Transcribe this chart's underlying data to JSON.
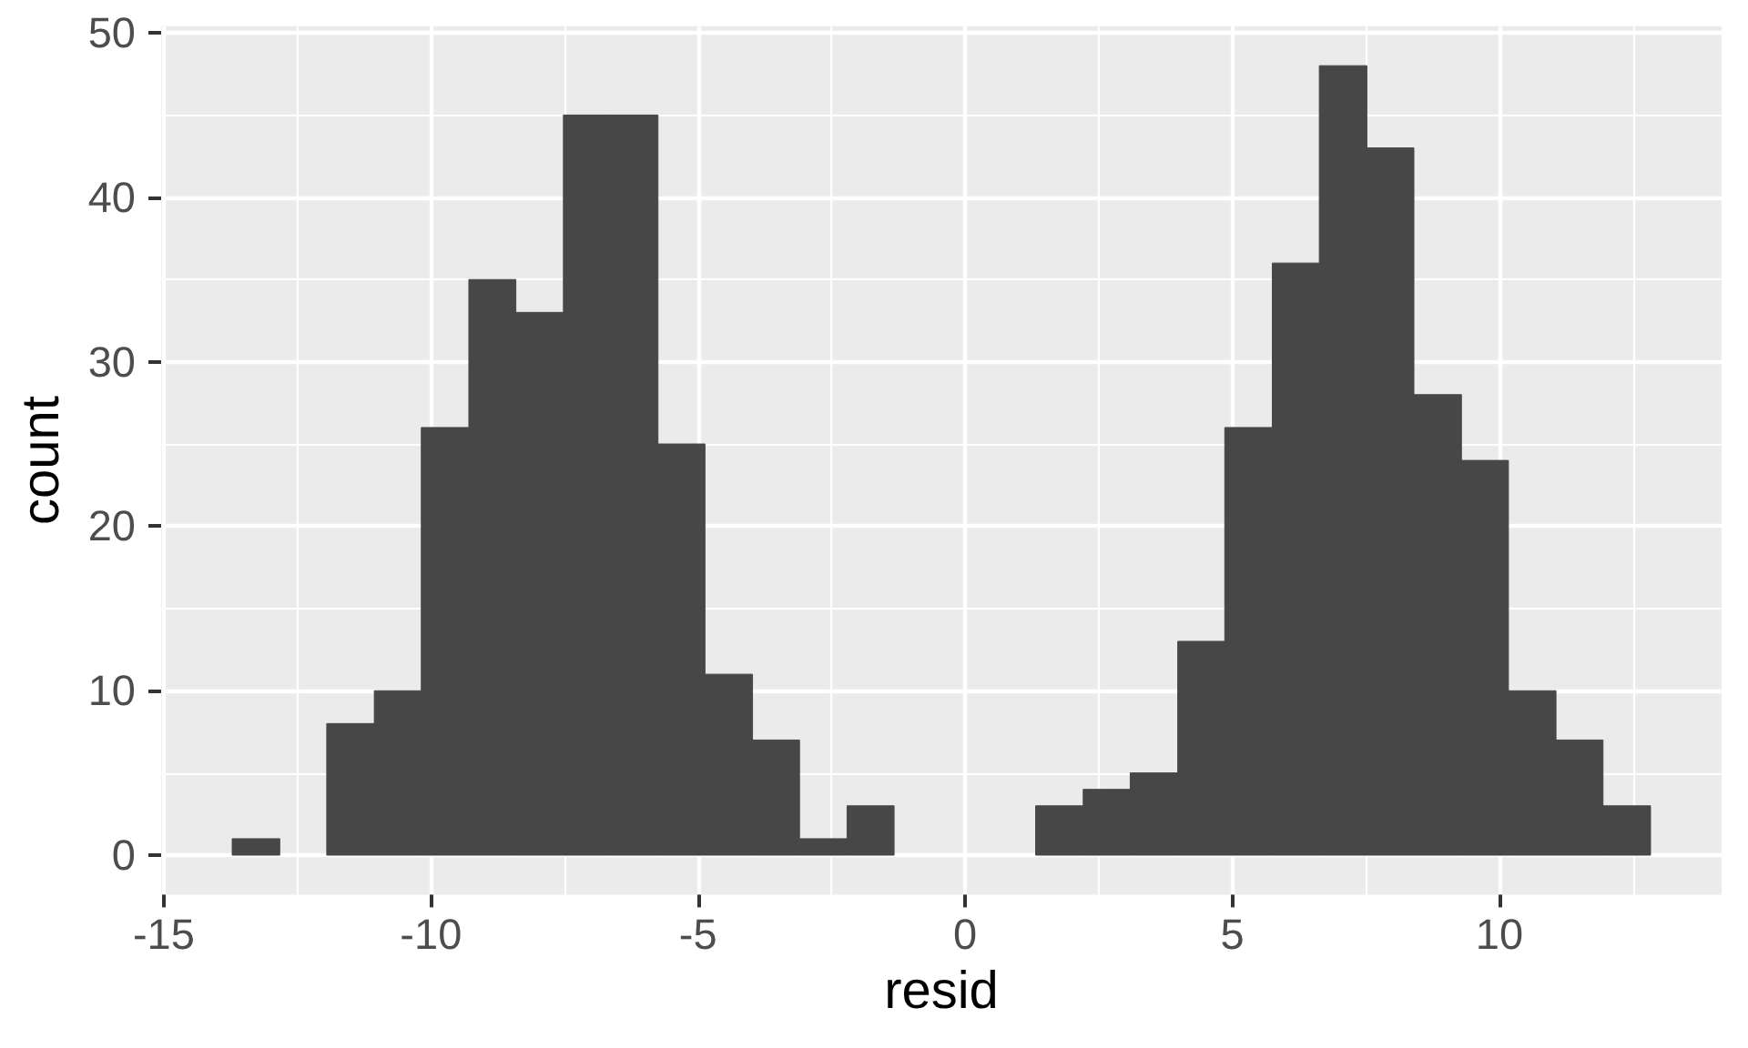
{
  "chart_data": {
    "type": "histogram",
    "xlabel": "resid",
    "ylabel": "count",
    "bins": [
      -13.72,
      -12.83,
      -11.95,
      -11.06,
      -10.18,
      -9.29,
      -8.41,
      -7.52,
      -6.64,
      -5.75,
      -4.87,
      -3.98,
      -3.1,
      -2.21,
      -1.33,
      1.32,
      2.21,
      3.09,
      3.98,
      4.86,
      5.75,
      6.63,
      7.52,
      8.4,
      9.29,
      10.17,
      11.06,
      11.94,
      12.83
    ],
    "values": [
      1,
      0,
      8,
      10,
      26,
      35,
      33,
      45,
      45,
      25,
      11,
      7,
      1,
      3,
      0,
      3,
      4,
      5,
      13,
      26,
      36,
      48,
      43,
      28,
      24,
      10,
      7,
      3
    ],
    "color": "#474747",
    "xlim": [
      -15.05,
      14.16
    ],
    "ylim": [
      -2.4,
      50.4
    ],
    "xticks": [
      -15,
      -10,
      -5,
      0,
      5,
      10
    ],
    "yticks": [
      0,
      10,
      20,
      30,
      40,
      50
    ],
    "grid": true
  }
}
